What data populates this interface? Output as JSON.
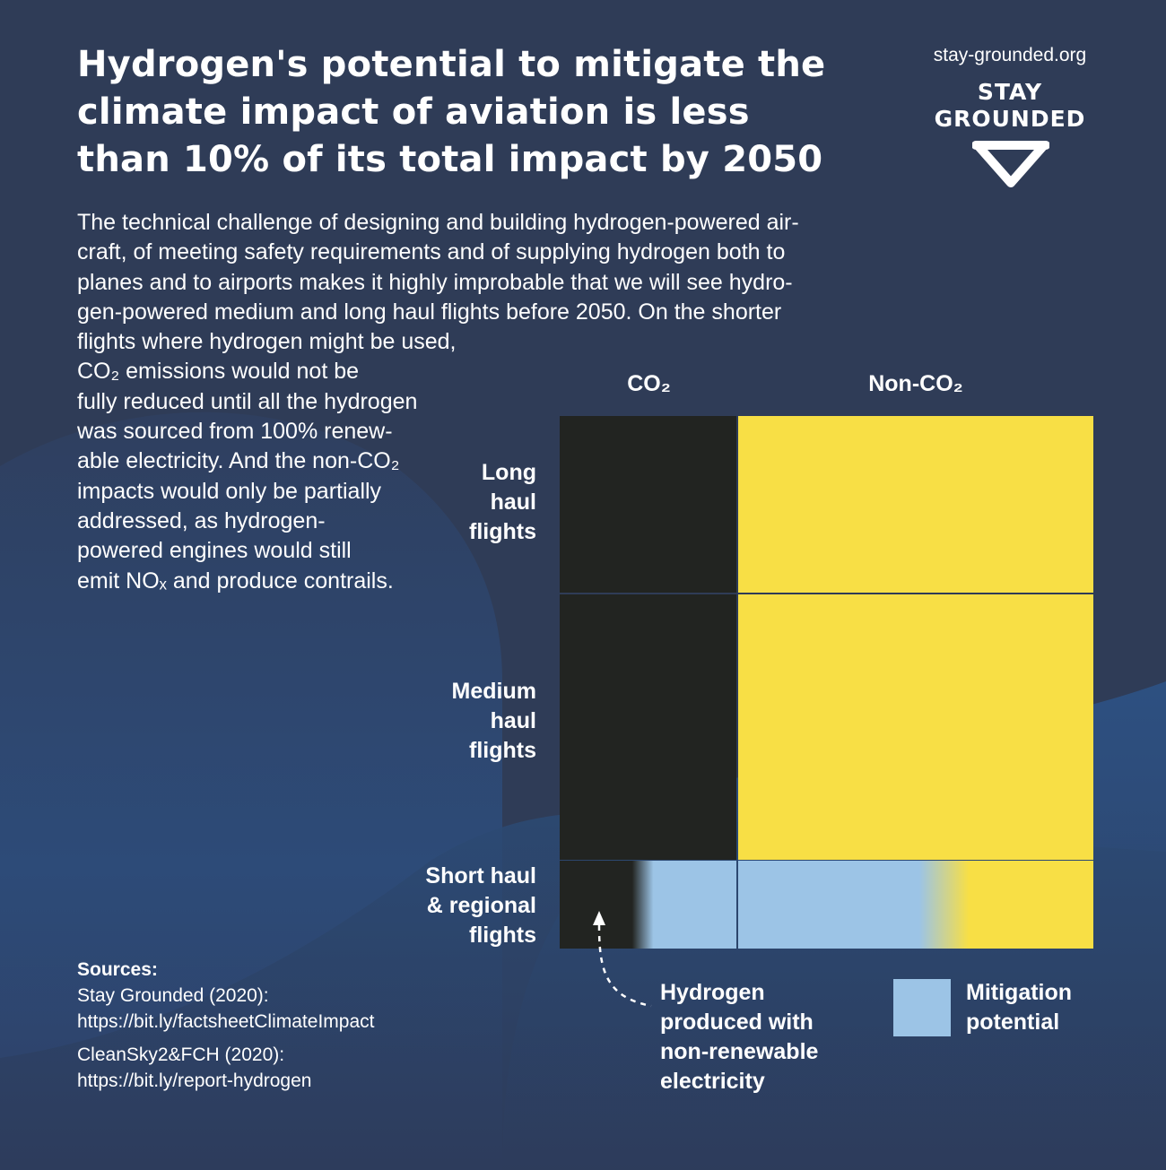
{
  "colors": {
    "background": "#2f3c57",
    "co2": "#222421",
    "non_co2": "#f8df45",
    "mitigation": "#9cc4e6",
    "grid_line": "#2f3c57"
  },
  "header": {
    "title_lines": [
      "Hydrogen's potential to mitigate the",
      "climate impact of aviation is less",
      "than 10% of its total impact by 2050"
    ],
    "brand_url": "stay-grounded.org",
    "brand_name_lines": [
      "STAY",
      "GROUNDED"
    ],
    "brand_logo_icon": "v-chevron-icon"
  },
  "intro_lines": [
    "The technical challenge of designing and building hydrogen-powered air-",
    "craft, of meeting safety requirements and of supplying hydrogen both to",
    "planes and to airports makes it highly improbable that we will see hydro-",
    "gen-powered medium and long haul flights before 2050. On the shorter",
    "flights where hydrogen might be used,",
    "CO₂ emissions would not be",
    "fully reduced until all the hydrogen",
    "was sourced from 100% renew-",
    "able electricity. And the non-CO₂",
    "impacts would only be partially",
    "addressed, as hydrogen-",
    "powered engines would still",
    "emit NOₓ and produce contrails."
  ],
  "chart_data": {
    "type": "table",
    "title": "Hydrogen's potential to mitigate the climate impact of aviation is less than 10% of its total impact by 2050",
    "columns": [
      "CO₂",
      "Non-CO₂"
    ],
    "column_shares": [
      1,
      2
    ],
    "rows": [
      {
        "label_lines": [
          "Long",
          "haul",
          "flights"
        ],
        "share": 2
      },
      {
        "label_lines": [
          "Medium",
          "haul",
          "flights"
        ],
        "share": 3
      },
      {
        "label_lines": [
          "Short haul",
          "& regional",
          "flights"
        ],
        "share": 1
      }
    ],
    "short_haul_mitigated_fraction": {
      "co2": 0.55,
      "non_co2": 0.55
    },
    "legend": [
      {
        "label_lines": [
          "Hydrogen",
          "produced with",
          "non-renewable",
          "electricity"
        ],
        "type": "annotation-arrow"
      },
      {
        "label_lines": [
          "Mitigation",
          "potential"
        ],
        "type": "swatch"
      }
    ]
  },
  "sources": {
    "heading": "Sources:",
    "items": [
      {
        "name": "Stay Grounded (2020):",
        "url": "https://bit.ly/factsheetClimateImpact"
      },
      {
        "name": "CleanSky2&FCH (2020):",
        "url": "https://bit.ly/report-hydrogen"
      }
    ]
  }
}
